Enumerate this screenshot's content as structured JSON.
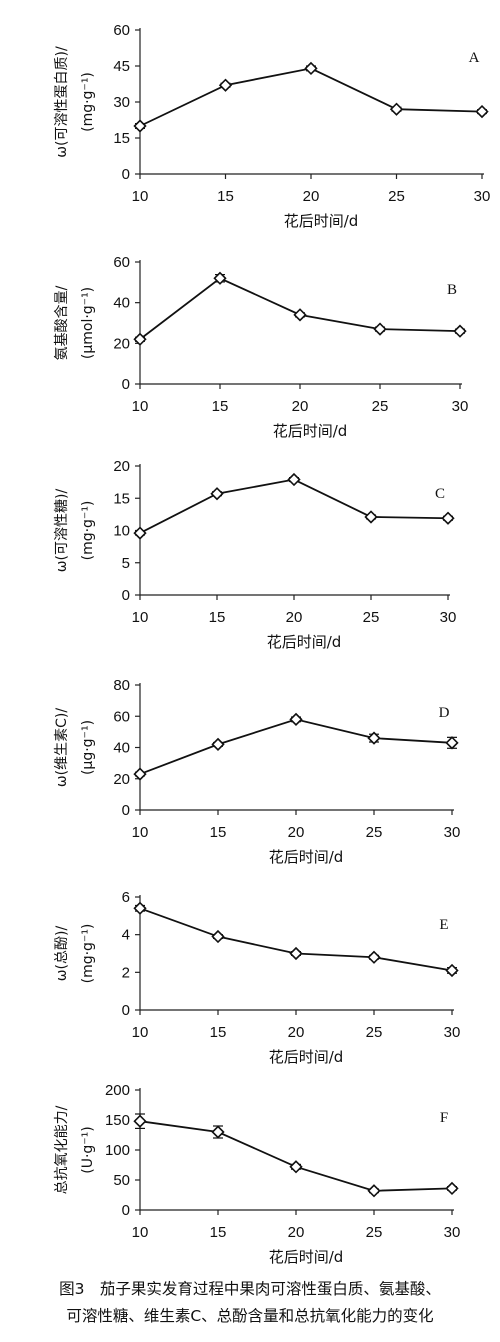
{
  "caption": {
    "line1": "图3　茄子果实发育过程中果肉可溶性蛋白质、氨基酸、",
    "line2": "可溶性糖、维生素C、总酚含量和总抗氧化能力的变化"
  },
  "chart_data": [
    {
      "type": "line",
      "panel": "A",
      "xlabel": "花后时间/d",
      "ylabel_line1": "ω(可溶性蛋白质)/",
      "ylabel_line2": "(mg·g⁻¹)",
      "x": [
        10,
        15,
        20,
        25,
        30
      ],
      "y": [
        20,
        37,
        44,
        27,
        26
      ],
      "err": [
        1,
        0.8,
        1,
        0.8,
        0.8
      ],
      "xlim": [
        10,
        30
      ],
      "ylim": [
        0,
        60
      ],
      "xticks": [
        10,
        15,
        20,
        25,
        30
      ],
      "yticks": [
        0,
        15,
        30,
        45,
        60
      ],
      "grid": false
    },
    {
      "type": "line",
      "panel": "B",
      "xlabel": "花后时间/d",
      "ylabel_line1": "氨基酸含量/",
      "ylabel_line2": "(μmol·g⁻¹)",
      "x": [
        10,
        15,
        20,
        25,
        30
      ],
      "y": [
        22,
        52,
        34,
        27,
        26
      ],
      "err": [
        1,
        1.8,
        1,
        1,
        1
      ],
      "xlim": [
        10,
        30
      ],
      "ylim": [
        0,
        60
      ],
      "xticks": [
        10,
        15,
        20,
        25,
        30
      ],
      "yticks": [
        0,
        20,
        40,
        60
      ],
      "grid": false
    },
    {
      "type": "line",
      "panel": "C",
      "xlabel": "花后时间/d",
      "ylabel_line1": "ω(可溶性糖)/",
      "ylabel_line2": "(mg·g⁻¹)",
      "x": [
        10,
        15,
        20,
        25,
        30
      ],
      "y": [
        9.6,
        15.7,
        17.9,
        12.1,
        11.9
      ],
      "err": [
        0.3,
        0.3,
        0.3,
        0.3,
        0.3
      ],
      "xlim": [
        10,
        30
      ],
      "ylim": [
        0,
        20
      ],
      "xticks": [
        10,
        15,
        20,
        25,
        30
      ],
      "yticks": [
        0,
        5,
        10,
        15,
        20
      ],
      "grid": false
    },
    {
      "type": "line",
      "panel": "D",
      "xlabel": "花后时间/d",
      "ylabel_line1": "ω(维生素C)/",
      "ylabel_line2": "(μg·g⁻¹)",
      "x": [
        10,
        15,
        20,
        25,
        30
      ],
      "y": [
        23,
        42,
        58,
        46,
        43
      ],
      "err": [
        1.2,
        1.2,
        1.5,
        2.5,
        3.5
      ],
      "xlim": [
        10,
        30
      ],
      "ylim": [
        0,
        80
      ],
      "xticks": [
        10,
        15,
        20,
        25,
        30
      ],
      "yticks": [
        0,
        20,
        40,
        60,
        80
      ],
      "grid": false
    },
    {
      "type": "line",
      "panel": "E",
      "xlabel": "花后时间/d",
      "ylabel_line1": "ω(总酚)/",
      "ylabel_line2": "(mg·g⁻¹)",
      "x": [
        10,
        15,
        20,
        25,
        30
      ],
      "y": [
        5.4,
        3.9,
        3.0,
        2.8,
        2.1
      ],
      "err": [
        0.15,
        0.1,
        0.1,
        0.1,
        0.15
      ],
      "xlim": [
        10,
        30
      ],
      "ylim": [
        0,
        6
      ],
      "xticks": [
        10,
        15,
        20,
        25,
        30
      ],
      "yticks": [
        0,
        2,
        4,
        6
      ],
      "grid": false
    },
    {
      "type": "line",
      "panel": "F",
      "xlabel": "花后时间/d",
      "ylabel_line1": "总抗氧化能力/",
      "ylabel_line2": "(U·g⁻¹)",
      "x": [
        10,
        15,
        20,
        25,
        30
      ],
      "y": [
        148,
        130,
        72,
        32,
        36
      ],
      "err": [
        12,
        10,
        4,
        3,
        3
      ],
      "xlim": [
        10,
        30
      ],
      "ylim": [
        0,
        200
      ],
      "xticks": [
        10,
        15,
        20,
        25,
        30
      ],
      "yticks": [
        0,
        50,
        100,
        150,
        200
      ],
      "grid": false
    }
  ]
}
